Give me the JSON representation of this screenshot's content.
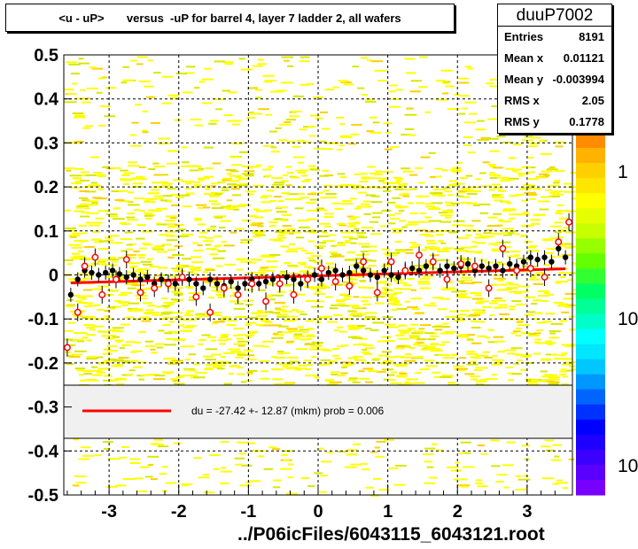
{
  "chart_data": {
    "type": "scatter",
    "title": "<u - uP>       versus  -uP for barrel 4, layer 7 ladder 2, all wafers",
    "xlabel": "",
    "ylabel": "",
    "xlim": [
      -3.65,
      3.65
    ],
    "ylim": [
      -0.5,
      0.5
    ],
    "xticks": [
      -3,
      -2,
      -1,
      0,
      1,
      2,
      3
    ],
    "yticks": [
      -0.5,
      -0.4,
      -0.3,
      -0.2,
      -0.1,
      0,
      0.1,
      0.2,
      0.3,
      0.4,
      0.5
    ],
    "ytick_labels": [
      "-0.5",
      "-0.4",
      "-0.3",
      "-0.2",
      "-0.1",
      "0",
      "0.1",
      "0.2",
      "0.3",
      "0.4",
      "0.5"
    ],
    "grid": true,
    "stats": {
      "name": "duuP7002",
      "rows": [
        {
          "label": "Entries",
          "value": "8191"
        },
        {
          "label": "Mean x",
          "value": "0.01121"
        },
        {
          "label": "Mean y",
          "value": "-0.003994"
        },
        {
          "label": "RMS x",
          "value": "2.05"
        },
        {
          "label": "RMS y",
          "value": "0.1778"
        }
      ]
    },
    "fit": {
      "label": "du =  -27.42 +- 12.87 (mkm) prob = 0.006",
      "color": "#ff0000",
      "x": [
        -3.55,
        3.55
      ],
      "y": [
        -0.018,
        0.014
      ]
    },
    "profile_black": {
      "x": [
        -3.55,
        -3.45,
        -3.35,
        -3.25,
        -3.15,
        -3.05,
        -2.95,
        -2.85,
        -2.75,
        -2.65,
        -2.55,
        -2.45,
        -2.35,
        -2.25,
        -2.15,
        -2.05,
        -1.95,
        -1.85,
        -1.75,
        -1.65,
        -1.55,
        -1.45,
        -1.35,
        -1.25,
        -1.15,
        -1.05,
        -0.95,
        -0.85,
        -0.75,
        -0.65,
        -0.55,
        -0.45,
        -0.35,
        -0.25,
        -0.15,
        -0.05,
        0.05,
        0.15,
        0.25,
        0.35,
        0.45,
        0.55,
        0.65,
        0.75,
        0.85,
        0.95,
        1.05,
        1.15,
        1.25,
        1.35,
        1.45,
        1.55,
        1.65,
        1.75,
        1.85,
        1.95,
        2.05,
        2.15,
        2.25,
        2.35,
        2.45,
        2.55,
        2.65,
        2.75,
        2.85,
        2.95,
        3.05,
        3.15,
        3.25,
        3.35,
        3.45,
        3.55
      ],
      "y": [
        -0.045,
        -0.01,
        0.01,
        0.005,
        0.0,
        0.005,
        0.01,
        0.002,
        -0.005,
        0.0,
        -0.01,
        -0.005,
        -0.02,
        -0.01,
        -0.015,
        -0.02,
        -0.005,
        -0.01,
        -0.02,
        -0.03,
        -0.01,
        -0.02,
        -0.025,
        -0.015,
        -0.03,
        -0.02,
        -0.01,
        -0.02,
        -0.015,
        -0.01,
        -0.02,
        -0.005,
        -0.01,
        -0.02,
        -0.01,
        0.0,
        -0.01,
        0.005,
        0.01,
        0.0,
        0.005,
        0.02,
        0.01,
        0.0,
        -0.005,
        0.01,
        0.0,
        -0.005,
        0.01,
        0.015,
        0.01,
        0.02,
        0.03,
        0.01,
        0.02,
        0.015,
        0.02,
        0.025,
        0.01,
        0.02,
        0.015,
        0.02,
        0.01,
        0.025,
        0.02,
        0.03,
        0.04,
        0.035,
        0.04,
        0.03,
        0.06,
        0.04
      ]
    },
    "profile_red": {
      "x": [
        -3.6,
        -3.45,
        -3.35,
        -3.2,
        -3.1,
        -2.9,
        -2.75,
        -2.55,
        -2.35,
        -2.15,
        -1.95,
        -1.75,
        -1.55,
        -1.35,
        -1.15,
        -0.95,
        -0.75,
        -0.55,
        -0.35,
        -0.15,
        0.05,
        0.25,
        0.45,
        0.65,
        0.85,
        1.05,
        1.25,
        1.45,
        1.65,
        1.85,
        2.05,
        2.25,
        2.45,
        2.65,
        2.85,
        3.05,
        3.25,
        3.45,
        3.6
      ],
      "y": [
        -0.165,
        -0.085,
        0.02,
        0.04,
        -0.045,
        -0.01,
        0.035,
        -0.04,
        -0.03,
        -0.02,
        -0.005,
        -0.05,
        -0.085,
        -0.03,
        -0.045,
        -0.02,
        -0.06,
        -0.02,
        -0.045,
        -0.01,
        0.015,
        -0.015,
        -0.025,
        0.03,
        -0.04,
        0.03,
        0.01,
        0.045,
        0.03,
        -0.01,
        0.025,
        0.02,
        -0.03,
        0.06,
        0.01,
        0.015,
        -0.005,
        0.075,
        0.12
      ]
    },
    "colorbar_labels": [
      "1",
      "10",
      "10"
    ]
  }
}
